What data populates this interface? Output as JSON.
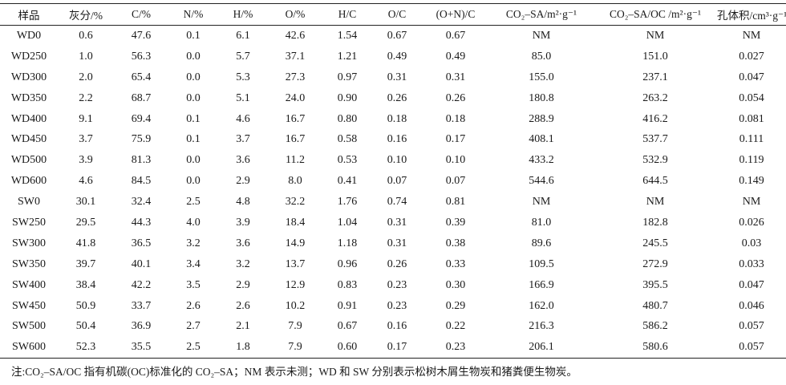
{
  "table": {
    "headers": [
      "样品",
      "灰分/%",
      "C/%",
      "N/%",
      "H/%",
      "O/%",
      "H/C",
      "O/C",
      "(O+N)/C",
      "CO₂–SA/m²·g⁻¹",
      "CO₂–SA/OC /m²·g⁻¹",
      "孔体积/cm³·g⁻¹"
    ],
    "rows": [
      [
        "WD0",
        "0.6",
        "47.6",
        "0.1",
        "6.1",
        "42.6",
        "1.54",
        "0.67",
        "0.67",
        "NM",
        "NM",
        "NM"
      ],
      [
        "WD250",
        "1.0",
        "56.3",
        "0.0",
        "5.7",
        "37.1",
        "1.21",
        "0.49",
        "0.49",
        "85.0",
        "151.0",
        "0.027"
      ],
      [
        "WD300",
        "2.0",
        "65.4",
        "0.0",
        "5.3",
        "27.3",
        "0.97",
        "0.31",
        "0.31",
        "155.0",
        "237.1",
        "0.047"
      ],
      [
        "WD350",
        "2.2",
        "68.7",
        "0.0",
        "5.1",
        "24.0",
        "0.90",
        "0.26",
        "0.26",
        "180.8",
        "263.2",
        "0.054"
      ],
      [
        "WD400",
        "9.1",
        "69.4",
        "0.1",
        "4.6",
        "16.7",
        "0.80",
        "0.18",
        "0.18",
        "288.9",
        "416.2",
        "0.081"
      ],
      [
        "WD450",
        "3.7",
        "75.9",
        "0.1",
        "3.7",
        "16.7",
        "0.58",
        "0.16",
        "0.17",
        "408.1",
        "537.7",
        "0.111"
      ],
      [
        "WD500",
        "3.9",
        "81.3",
        "0.0",
        "3.6",
        "11.2",
        "0.53",
        "0.10",
        "0.10",
        "433.2",
        "532.9",
        "0.119"
      ],
      [
        "WD600",
        "4.6",
        "84.5",
        "0.0",
        "2.9",
        "8.0",
        "0.41",
        "0.07",
        "0.07",
        "544.6",
        "644.5",
        "0.149"
      ],
      [
        "SW0",
        "30.1",
        "32.4",
        "2.5",
        "4.8",
        "32.2",
        "1.76",
        "0.74",
        "0.81",
        "NM",
        "NM",
        "NM"
      ],
      [
        "SW250",
        "29.5",
        "44.3",
        "4.0",
        "3.9",
        "18.4",
        "1.04",
        "0.31",
        "0.39",
        "81.0",
        "182.8",
        "0.026"
      ],
      [
        "SW300",
        "41.8",
        "36.5",
        "3.2",
        "3.6",
        "14.9",
        "1.18",
        "0.31",
        "0.38",
        "89.6",
        "245.5",
        "0.03"
      ],
      [
        "SW350",
        "39.7",
        "40.1",
        "3.4",
        "3.2",
        "13.7",
        "0.96",
        "0.26",
        "0.33",
        "109.5",
        "272.9",
        "0.033"
      ],
      [
        "SW400",
        "38.4",
        "42.2",
        "3.5",
        "2.9",
        "12.9",
        "0.83",
        "0.23",
        "0.30",
        "166.9",
        "395.5",
        "0.047"
      ],
      [
        "SW450",
        "50.9",
        "33.7",
        "2.6",
        "2.6",
        "10.2",
        "0.91",
        "0.23",
        "0.29",
        "162.0",
        "480.7",
        "0.046"
      ],
      [
        "SW500",
        "50.4",
        "36.9",
        "2.7",
        "2.1",
        "7.9",
        "0.67",
        "0.16",
        "0.22",
        "216.3",
        "586.2",
        "0.057"
      ],
      [
        "SW600",
        "52.3",
        "35.5",
        "2.5",
        "1.8",
        "7.9",
        "0.60",
        "0.17",
        "0.23",
        "206.1",
        "580.6",
        "0.057"
      ]
    ]
  },
  "note": "注:CO₂–SA/OC 指有机碳(OC)标准化的 CO₂–SA；NM 表示未测；WD 和 SW 分别表示松树木屑生物炭和猪粪便生物炭。",
  "chart_data": {
    "type": "table",
    "columns": [
      "样品",
      "灰分/%",
      "C/%",
      "N/%",
      "H/%",
      "O/%",
      "H/C",
      "O/C",
      "(O+N)/C",
      "CO₂–SA/m²·g⁻¹",
      "CO₂–SA/OC /m²·g⁻¹",
      "孔体积/cm³·g⁻¹"
    ],
    "rows": [
      [
        "WD0",
        "0.6",
        "47.6",
        "0.1",
        "6.1",
        "42.6",
        "1.54",
        "0.67",
        "0.67",
        "NM",
        "NM",
        "NM"
      ],
      [
        "WD250",
        "1.0",
        "56.3",
        "0.0",
        "5.7",
        "37.1",
        "1.21",
        "0.49",
        "0.49",
        "85.0",
        "151.0",
        "0.027"
      ],
      [
        "WD300",
        "2.0",
        "65.4",
        "0.0",
        "5.3",
        "27.3",
        "0.97",
        "0.31",
        "0.31",
        "155.0",
        "237.1",
        "0.047"
      ],
      [
        "WD350",
        "2.2",
        "68.7",
        "0.0",
        "5.1",
        "24.0",
        "0.90",
        "0.26",
        "0.26",
        "180.8",
        "263.2",
        "0.054"
      ],
      [
        "WD400",
        "9.1",
        "69.4",
        "0.1",
        "4.6",
        "16.7",
        "0.80",
        "0.18",
        "0.18",
        "288.9",
        "416.2",
        "0.081"
      ],
      [
        "WD450",
        "3.7",
        "75.9",
        "0.1",
        "3.7",
        "16.7",
        "0.58",
        "0.16",
        "0.17",
        "408.1",
        "537.7",
        "0.111"
      ],
      [
        "WD500",
        "3.9",
        "81.3",
        "0.0",
        "3.6",
        "11.2",
        "0.53",
        "0.10",
        "0.10",
        "433.2",
        "532.9",
        "0.119"
      ],
      [
        "WD600",
        "4.6",
        "84.5",
        "0.0",
        "2.9",
        "8.0",
        "0.41",
        "0.07",
        "0.07",
        "544.6",
        "644.5",
        "0.149"
      ],
      [
        "SW0",
        "30.1",
        "32.4",
        "2.5",
        "4.8",
        "32.2",
        "1.76",
        "0.74",
        "0.81",
        "NM",
        "NM",
        "NM"
      ],
      [
        "SW250",
        "29.5",
        "44.3",
        "4.0",
        "3.9",
        "18.4",
        "1.04",
        "0.31",
        "0.39",
        "81.0",
        "182.8",
        "0.026"
      ],
      [
        "SW300",
        "41.8",
        "36.5",
        "3.2",
        "3.6",
        "14.9",
        "1.18",
        "0.31",
        "0.38",
        "89.6",
        "245.5",
        "0.03"
      ],
      [
        "SW350",
        "39.7",
        "40.1",
        "3.4",
        "3.2",
        "13.7",
        "0.96",
        "0.26",
        "0.33",
        "109.5",
        "272.9",
        "0.033"
      ],
      [
        "SW400",
        "38.4",
        "42.2",
        "3.5",
        "2.9",
        "12.9",
        "0.83",
        "0.23",
        "0.30",
        "166.9",
        "395.5",
        "0.047"
      ],
      [
        "SW450",
        "50.9",
        "33.7",
        "2.6",
        "2.6",
        "10.2",
        "0.91",
        "0.23",
        "0.29",
        "162.0",
        "480.7",
        "0.046"
      ],
      [
        "SW500",
        "50.4",
        "36.9",
        "2.7",
        "2.1",
        "7.9",
        "0.67",
        "0.16",
        "0.22",
        "216.3",
        "586.2",
        "0.057"
      ],
      [
        "SW600",
        "52.3",
        "35.5",
        "2.5",
        "1.8",
        "7.9",
        "0.60",
        "0.17",
        "0.23",
        "206.1",
        "580.6",
        "0.057"
      ]
    ]
  }
}
